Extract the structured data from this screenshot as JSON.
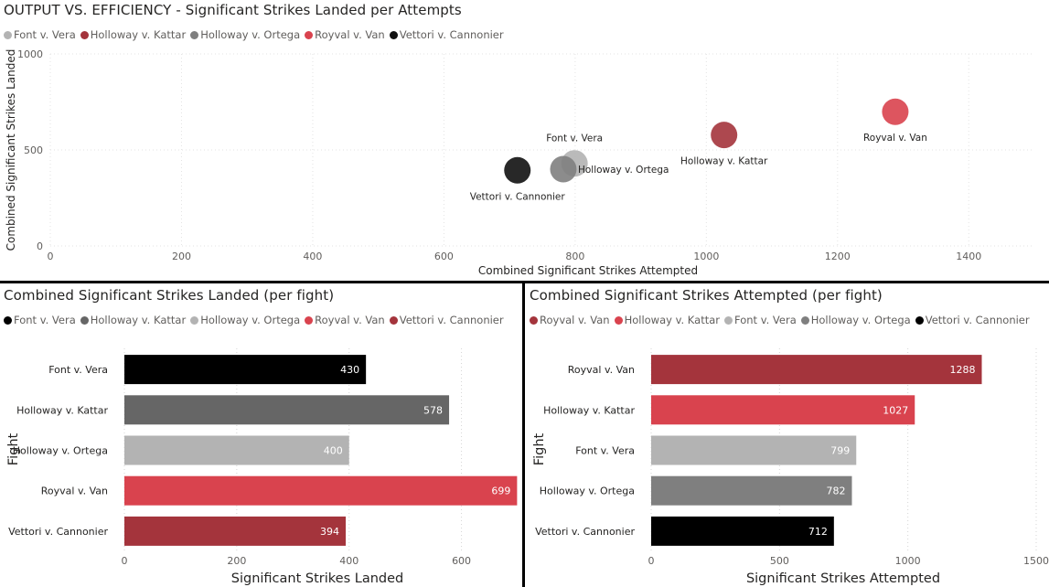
{
  "top": {
    "title": "OUTPUT VS. EFFICIENCY - Significant Strikes Landed per Attempts",
    "legend": [
      {
        "label": "Font v. Vera",
        "color": "#b3b3b3"
      },
      {
        "label": "Holloway v. Kattar",
        "color": "#a4343c"
      },
      {
        "label": "Holloway v. Ortega",
        "color": "#7f7f7f"
      },
      {
        "label": "Royval v. Van",
        "color": "#d9434e"
      },
      {
        "label": "Vettori v. Cannonier",
        "color": "#111111"
      }
    ]
  },
  "bottom_left": {
    "title": "Combined Significant Strikes Landed (per fight)",
    "legend": [
      {
        "label": "Font v. Vera",
        "color": "#000000"
      },
      {
        "label": "Holloway v. Kattar",
        "color": "#666666"
      },
      {
        "label": "Holloway v. Ortega",
        "color": "#b3b3b3"
      },
      {
        "label": "Royval v. Van",
        "color": "#d9434e"
      },
      {
        "label": "Vettori v. Cannonier",
        "color": "#a4343c"
      }
    ]
  },
  "bottom_right": {
    "title": "Combined Significant Strikes Attempted (per fight)",
    "legend": [
      {
        "label": "Royval v. Van",
        "color": "#a4343c"
      },
      {
        "label": "Holloway v. Kattar",
        "color": "#d9434e"
      },
      {
        "label": "Font v. Vera",
        "color": "#b3b3b3"
      },
      {
        "label": "Holloway v. Ortega",
        "color": "#7f7f7f"
      },
      {
        "label": "Vettori v. Cannonier",
        "color": "#000000"
      }
    ]
  },
  "chart_data": [
    {
      "type": "scatter",
      "title": "OUTPUT VS. EFFICIENCY - Significant Strikes Landed per Attempts",
      "xlabel": "Combined Significant Strikes Attempted",
      "ylabel": "Combined Significant Strikes Landed",
      "xlim": [
        0,
        1500
      ],
      "ylim": [
        0,
        1000
      ],
      "xticks": [
        0,
        200,
        400,
        600,
        800,
        1000,
        1200,
        1400
      ],
      "yticks": [
        0,
        500,
        1000
      ],
      "points": [
        {
          "name": "Font v. Vera",
          "x": 799,
          "y": 430,
          "color": "#b3b3b3",
          "label_pos": "above"
        },
        {
          "name": "Holloway v. Kattar",
          "x": 1027,
          "y": 578,
          "color": "#a4343c",
          "label_pos": "below"
        },
        {
          "name": "Holloway v. Ortega",
          "x": 782,
          "y": 400,
          "color": "#7f7f7f",
          "label_pos": "right"
        },
        {
          "name": "Royval v. Van",
          "x": 1288,
          "y": 699,
          "color": "#d9434e",
          "label_pos": "below"
        },
        {
          "name": "Vettori v. Cannonier",
          "x": 712,
          "y": 394,
          "color": "#111111",
          "label_pos": "below"
        }
      ]
    },
    {
      "type": "bar",
      "orientation": "horizontal",
      "title": "Combined Significant Strikes Landed (per fight)",
      "xlabel": "Significant Strikes Landed",
      "ylabel": "Fight",
      "xlim": [
        0,
        700
      ],
      "xticks": [
        0,
        200,
        400,
        600
      ],
      "categories": [
        "Font v. Vera",
        "Holloway v. Kattar",
        "Holloway v. Ortega",
        "Royval v. Van",
        "Vettori v. Cannonier"
      ],
      "values": [
        430,
        578,
        400,
        699,
        394
      ],
      "colors": [
        "#000000",
        "#666666",
        "#b3b3b3",
        "#d9434e",
        "#a4343c"
      ]
    },
    {
      "type": "bar",
      "orientation": "horizontal",
      "title": "Combined Significant Strikes Attempted (per fight)",
      "xlabel": "Significant Strikes Attempted",
      "ylabel": "Fight",
      "xlim": [
        0,
        1500
      ],
      "xticks": [
        0,
        500,
        1000,
        1500
      ],
      "categories": [
        "Royval v. Van",
        "Holloway v. Kattar",
        "Font v. Vera",
        "Holloway v. Ortega",
        "Vettori v. Cannonier"
      ],
      "values": [
        1288,
        1027,
        799,
        782,
        712
      ],
      "colors": [
        "#a4343c",
        "#d9434e",
        "#b3b3b3",
        "#7f7f7f",
        "#000000"
      ]
    }
  ]
}
